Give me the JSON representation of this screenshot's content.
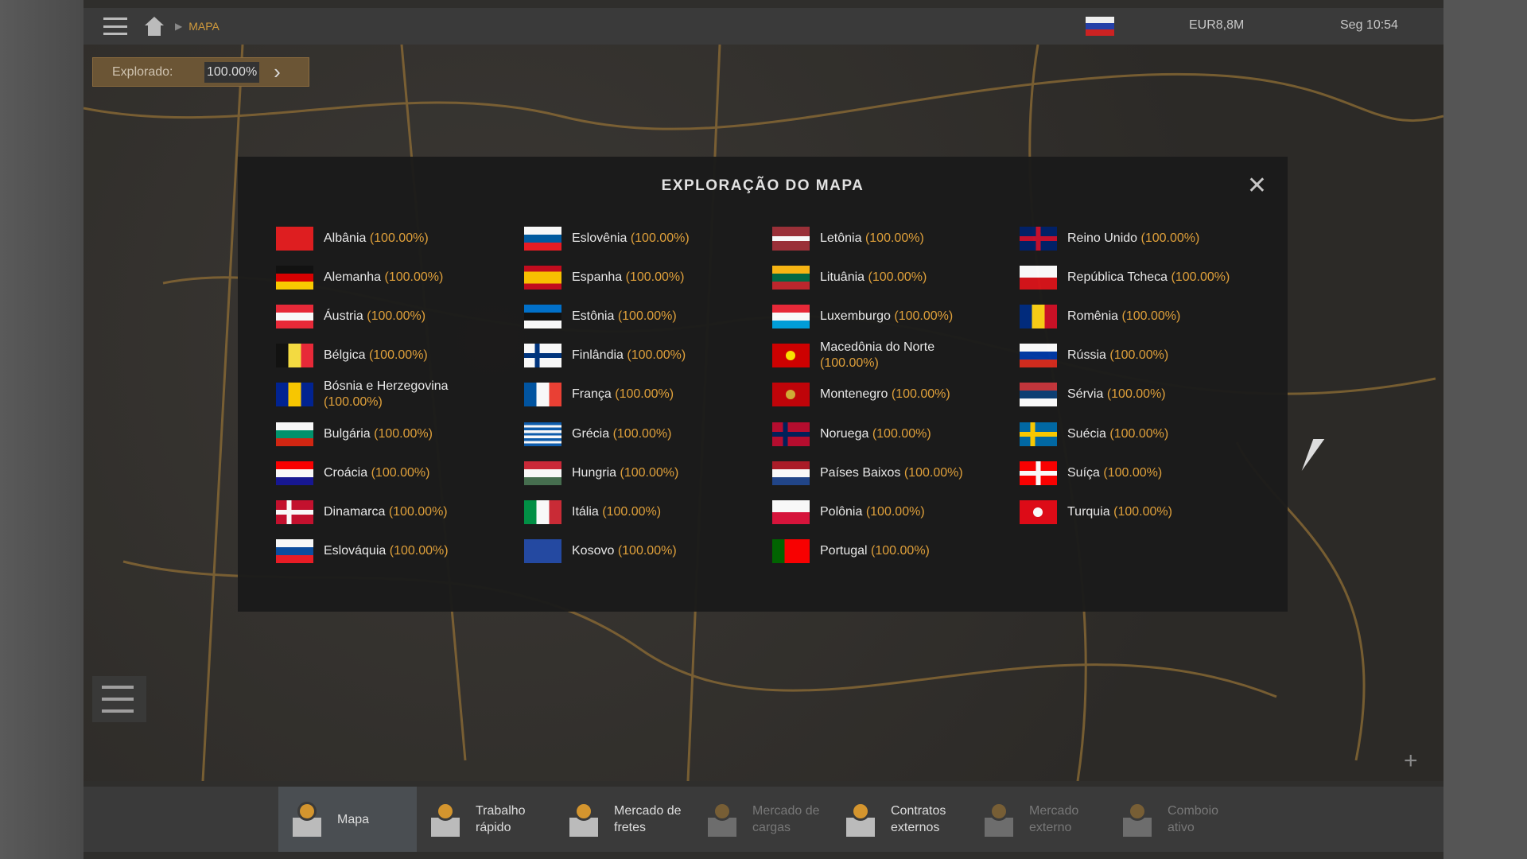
{
  "topbar": {
    "breadcrumb": "MAPA",
    "money": "EUR8,8M",
    "clock": "Seg 10:54"
  },
  "explored": {
    "label": "Explorado:",
    "value": "100.00%"
  },
  "modal": {
    "title": "EXPLORAÇÃO DO MAPA",
    "close": "✕"
  },
  "countries": [
    {
      "name": "Albânia",
      "pct": "(100.00%)",
      "flag": {
        "dir": "h",
        "colors": [
          "#e41e20"
        ]
      }
    },
    {
      "name": "Alemanha",
      "pct": "(100.00%)",
      "flag": {
        "dir": "h",
        "colors": [
          "#111",
          "#dd0000",
          "#ffce00"
        ]
      }
    },
    {
      "name": "Áustria",
      "pct": "(100.00%)",
      "flag": {
        "dir": "h",
        "colors": [
          "#ed2939",
          "#fff",
          "#ed2939"
        ]
      }
    },
    {
      "name": "Bélgica",
      "pct": "(100.00%)",
      "flag": {
        "dir": "v",
        "colors": [
          "#111",
          "#fae042",
          "#ed2939"
        ]
      }
    },
    {
      "name": "Bósnia e Herzegovina",
      "pct": "(100.00%)",
      "flag": {
        "dir": "v",
        "colors": [
          "#002395",
          "#fecb00",
          "#002395"
        ]
      }
    },
    {
      "name": "Bulgária",
      "pct": "(100.00%)",
      "flag": {
        "dir": "h",
        "colors": [
          "#fff",
          "#00966e",
          "#d62612"
        ]
      }
    },
    {
      "name": "Croácia",
      "pct": "(100.00%)",
      "flag": {
        "dir": "h",
        "colors": [
          "#ff0000",
          "#fff",
          "#171796"
        ]
      }
    },
    {
      "name": "Dinamarca",
      "pct": "(100.00%)",
      "flag": {
        "dir": "h",
        "colors": [
          "#c8102e"
        ],
        "cross": "#fff"
      }
    },
    {
      "name": "Eslováquia",
      "pct": "(100.00%)",
      "flag": {
        "dir": "h",
        "colors": [
          "#fff",
          "#0b4ea2",
          "#ee1c25"
        ]
      }
    },
    {
      "name": "Eslovênia",
      "pct": "(100.00%)",
      "flag": {
        "dir": "h",
        "colors": [
          "#fff",
          "#005da4",
          "#ed1c24"
        ]
      }
    },
    {
      "name": "Espanha",
      "pct": "(100.00%)",
      "flag": {
        "dir": "h",
        "colors": [
          "#c60b1e",
          "#ffc400",
          "#ffc400",
          "#c60b1e"
        ]
      }
    },
    {
      "name": "Estônia",
      "pct": "(100.00%)",
      "flag": {
        "dir": "h",
        "colors": [
          "#0072ce",
          "#111",
          "#fff"
        ]
      }
    },
    {
      "name": "Finlândia",
      "pct": "(100.00%)",
      "flag": {
        "dir": "h",
        "colors": [
          "#fff"
        ],
        "cross": "#003580"
      }
    },
    {
      "name": "França",
      "pct": "(100.00%)",
      "flag": {
        "dir": "v",
        "colors": [
          "#0055a4",
          "#fff",
          "#ef4135"
        ]
      }
    },
    {
      "name": "Grécia",
      "pct": "(100.00%)",
      "flag": {
        "dir": "h",
        "colors": [
          "#0d5eaf",
          "#fff",
          "#0d5eaf",
          "#fff",
          "#0d5eaf",
          "#fff",
          "#0d5eaf",
          "#fff",
          "#0d5eaf"
        ]
      }
    },
    {
      "name": "Hungria",
      "pct": "(100.00%)",
      "flag": {
        "dir": "h",
        "colors": [
          "#ce2939",
          "#fff",
          "#477050"
        ]
      }
    },
    {
      "name": "Itália",
      "pct": "(100.00%)",
      "flag": {
        "dir": "v",
        "colors": [
          "#009246",
          "#fff",
          "#ce2b37"
        ]
      }
    },
    {
      "name": "Kosovo",
      "pct": "(100.00%)",
      "flag": {
        "dir": "h",
        "colors": [
          "#244aa5"
        ]
      }
    },
    {
      "name": "Letônia",
      "pct": "(100.00%)",
      "flag": {
        "dir": "h",
        "colors": [
          "#9e3039",
          "#9e3039",
          "#fff",
          "#9e3039",
          "#9e3039"
        ]
      }
    },
    {
      "name": "Lituânia",
      "pct": "(100.00%)",
      "flag": {
        "dir": "h",
        "colors": [
          "#fdb913",
          "#006a44",
          "#c1272d"
        ]
      }
    },
    {
      "name": "Luxemburgo",
      "pct": "(100.00%)",
      "flag": {
        "dir": "h",
        "colors": [
          "#ed2939",
          "#fff",
          "#00a1de"
        ]
      }
    },
    {
      "name": "Macedônia do Norte",
      "pct": "(100.00%)",
      "flag": {
        "dir": "h",
        "colors": [
          "#d20000"
        ],
        "sun": "#ffe600"
      }
    },
    {
      "name": "Montenegro",
      "pct": "(100.00%)",
      "flag": {
        "dir": "h",
        "colors": [
          "#c40308"
        ],
        "sun": "#d4af37"
      }
    },
    {
      "name": "Noruega",
      "pct": "(100.00%)",
      "flag": {
        "dir": "h",
        "colors": [
          "#ba0c2f"
        ],
        "cross": "#00205b"
      }
    },
    {
      "name": "Países Baixos",
      "pct": "(100.00%)",
      "flag": {
        "dir": "h",
        "colors": [
          "#ae1c28",
          "#fff",
          "#21468b"
        ]
      }
    },
    {
      "name": "Polônia",
      "pct": "(100.00%)",
      "flag": {
        "dir": "h",
        "colors": [
          "#fff",
          "#dc143c"
        ]
      }
    },
    {
      "name": "Portugal",
      "pct": "(100.00%)",
      "flag": {
        "dir": "v",
        "colors": [
          "#006600",
          "#ff0000",
          "#ff0000"
        ]
      }
    },
    {
      "name": "Reino Unido",
      "pct": "(100.00%)",
      "flag": {
        "dir": "h",
        "colors": [
          "#012169"
        ],
        "cross": "#c8102e",
        "center": true
      }
    },
    {
      "name": "República Tcheca",
      "pct": "(100.00%)",
      "flag": {
        "dir": "h",
        "colors": [
          "#fff",
          "#d7141a"
        ]
      }
    },
    {
      "name": "Romênia",
      "pct": "(100.00%)",
      "flag": {
        "dir": "v",
        "colors": [
          "#002b7f",
          "#fcd116",
          "#ce1126"
        ]
      }
    },
    {
      "name": "Rússia",
      "pct": "(100.00%)",
      "flag": {
        "dir": "h",
        "colors": [
          "#fff",
          "#0039a6",
          "#d52b1e"
        ]
      }
    },
    {
      "name": "Sérvia",
      "pct": "(100.00%)",
      "flag": {
        "dir": "h",
        "colors": [
          "#c6363c",
          "#0c4076",
          "#fff"
        ]
      }
    },
    {
      "name": "Suécia",
      "pct": "(100.00%)",
      "flag": {
        "dir": "h",
        "colors": [
          "#006aa7"
        ],
        "cross": "#fecc00"
      }
    },
    {
      "name": "Suíça",
      "pct": "(100.00%)",
      "flag": {
        "dir": "h",
        "colors": [
          "#ff0000"
        ],
        "cross": "#fff",
        "center": true
      }
    },
    {
      "name": "Turquia",
      "pct": "(100.00%)",
      "flag": {
        "dir": "h",
        "colors": [
          "#e30a17"
        ],
        "sun": "#fff"
      }
    }
  ],
  "bottom_tabs": [
    {
      "label": "Mapa",
      "active": true,
      "dim": false,
      "icon": "map-pin-icon"
    },
    {
      "label": "Trabalho rápido",
      "active": false,
      "dim": false,
      "icon": "clock-icon"
    },
    {
      "label": "Mercado de fretes",
      "active": false,
      "dim": false,
      "icon": "freight-icon"
    },
    {
      "label": "Mercado de cargas",
      "active": false,
      "dim": true,
      "icon": "cargo-icon"
    },
    {
      "label": "Contratos externos",
      "active": false,
      "dim": false,
      "icon": "globe-icon"
    },
    {
      "label": "Mercado externo",
      "active": false,
      "dim": true,
      "icon": "globe-market-icon"
    },
    {
      "label": "Comboio ativo",
      "active": false,
      "dim": true,
      "icon": "convoy-icon"
    }
  ],
  "colors": {
    "accent": "#e5a43b",
    "modal_bg": "#1b1b1b"
  }
}
